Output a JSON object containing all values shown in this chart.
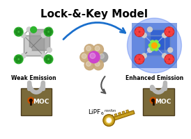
{
  "title": "Lock-&-Key Model",
  "title_fontsize": 11,
  "title_fontweight": "bold",
  "bg_color": "#ffffff",
  "weak_emission_label": "Weak Emission",
  "enhanced_emission_label": "Enhanced Emission",
  "lipf6_label": "LiPF",
  "lipf6_sub": "6",
  "lipf6_super": "nonfon",
  "moc_label": "MOC",
  "arrow_color": "#1a6fcc",
  "arrow2_color": "#555555",
  "lock_body_color": "#7a6a3a",
  "lock_shackle_color": "#b8b8b8",
  "lock_emblem_color": "#c85000",
  "green_ligand": "#2db52d",
  "red_ligand": "#cc2222",
  "cage_node_color": "#cccccc",
  "center_molecule_purple": "#cc44cc",
  "center_molecule_tan": "#c8a878",
  "center_molecule_gray": "#999999",
  "key_color": "#c8a020",
  "key_edge_color": "#8a6000"
}
